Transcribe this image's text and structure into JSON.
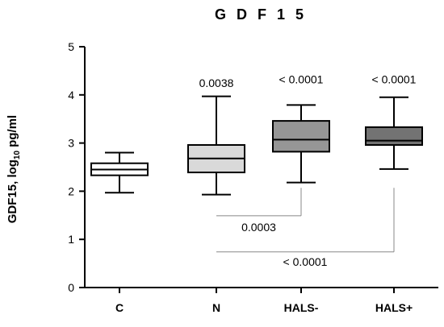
{
  "chart_data": {
    "type": "boxplot",
    "title": "G D F 1 5",
    "ylabel": {
      "main": "GDF15, log",
      "subscript": "10",
      "suffix": " pg/ml"
    },
    "ylim": [
      0,
      5
    ],
    "yticks": [
      "0",
      "1",
      "2",
      "3",
      "4",
      "5"
    ],
    "grid": false,
    "categories": [
      "C",
      "N",
      "HALS-",
      "HALS+"
    ],
    "boxes": [
      {
        "category": "C",
        "min": 1.97,
        "q1": 2.33,
        "median": 2.45,
        "q3": 2.58,
        "max": 2.8,
        "fill": "#ffffff"
      },
      {
        "category": "N",
        "min": 1.93,
        "q1": 2.39,
        "median": 2.68,
        "q3": 2.96,
        "max": 3.97,
        "fill": "#d9d9d9"
      },
      {
        "category": "HALS-",
        "min": 2.18,
        "q1": 2.82,
        "median": 3.07,
        "q3": 3.46,
        "max": 3.79,
        "fill": "#969696"
      },
      {
        "category": "HALS+",
        "min": 2.46,
        "q1": 2.96,
        "median": 3.05,
        "q3": 3.33,
        "max": 3.95,
        "fill": "#737373"
      }
    ],
    "annotations": [
      {
        "text": "0.0038",
        "category": "N",
        "y": 4.16
      },
      {
        "text": "< 0.0001",
        "category": "HALS-",
        "y": 4.24
      },
      {
        "text": "< 0.0001",
        "category": "HALS+",
        "y": 4.24
      }
    ],
    "brackets": [
      {
        "from": "N",
        "to": "HALS-",
        "y_start": 1.49,
        "y_end": 2.07,
        "label": "0.0003",
        "label_y": 1.17
      },
      {
        "from": "N",
        "to": "HALS+",
        "y_start": 0.74,
        "y_end": 2.07,
        "label": "< 0.0001",
        "label_y": 0.45
      }
    ],
    "line_color": "#000000",
    "bracket_color": "#888888"
  }
}
